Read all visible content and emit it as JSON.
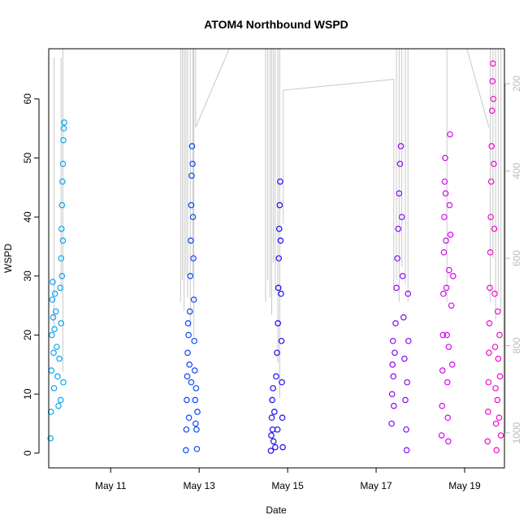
{
  "chart_data": {
    "type": "scatter",
    "title": "ATOM4 Northbound WSPD",
    "xlabel": "Date",
    "ylabel": "WSPD",
    "x_ticks": [
      {
        "label": "May 11",
        "day": 11
      },
      {
        "label": "May 13",
        "day": 13
      },
      {
        "label": "May 15",
        "day": 15
      },
      {
        "label": "May 17",
        "day": 17
      },
      {
        "label": "May 19",
        "day": 19
      }
    ],
    "xlim": [
      9.6,
      19.9
    ],
    "ylim": [
      -2.5,
      68.5
    ],
    "y_ticks": [
      0,
      10,
      20,
      30,
      40,
      50,
      60
    ],
    "y_right_ticks": [
      200,
      400,
      600,
      800,
      1000
    ],
    "y_right_lim": [
      120,
      1080
    ],
    "y_right_reversed": true,
    "point_shape": "open-circle",
    "legend": "none",
    "grid": false,
    "series": [
      {
        "color": "#0aa6ee",
        "values": [
          [
            9.64,
            2.5
          ],
          [
            9.65,
            7
          ],
          [
            9.66,
            14
          ],
          [
            9.67,
            20
          ],
          [
            9.68,
            26
          ],
          [
            9.69,
            29
          ],
          [
            9.7,
            23
          ],
          [
            9.71,
            17
          ],
          [
            9.72,
            11
          ],
          [
            9.73,
            21
          ],
          [
            9.74,
            27
          ],
          [
            9.76,
            24
          ],
          [
            9.78,
            18
          ],
          [
            9.8,
            13
          ],
          [
            9.82,
            8
          ],
          [
            9.84,
            16
          ],
          [
            9.86,
            28
          ],
          [
            9.88,
            33
          ],
          [
            9.89,
            38
          ],
          [
            9.9,
            42
          ],
          [
            9.91,
            46
          ],
          [
            9.92,
            49
          ],
          [
            9.93,
            53
          ],
          [
            9.94,
            55
          ],
          [
            9.95,
            56
          ],
          [
            9.92,
            36
          ],
          [
            9.9,
            30
          ],
          [
            9.88,
            22
          ],
          [
            9.87,
            9
          ],
          [
            9.93,
            12
          ]
        ]
      },
      {
        "color": "#0a48f5",
        "values": [
          [
            12.7,
            0.5
          ],
          [
            12.71,
            4
          ],
          [
            12.72,
            9
          ],
          [
            12.73,
            13
          ],
          [
            12.74,
            17
          ],
          [
            12.75,
            22
          ],
          [
            12.76,
            20
          ],
          [
            12.78,
            15
          ],
          [
            12.79,
            24
          ],
          [
            12.8,
            30
          ],
          [
            12.81,
            36
          ],
          [
            12.82,
            42
          ],
          [
            12.83,
            47
          ],
          [
            12.84,
            52
          ],
          [
            12.85,
            49
          ],
          [
            12.86,
            40
          ],
          [
            12.87,
            33
          ],
          [
            12.88,
            26
          ],
          [
            12.89,
            19
          ],
          [
            12.9,
            14
          ],
          [
            12.91,
            9
          ],
          [
            12.92,
            5
          ],
          [
            12.93,
            11
          ],
          [
            12.94,
            4
          ],
          [
            12.95,
            0.7
          ],
          [
            12.96,
            7
          ],
          [
            12.82,
            12
          ],
          [
            12.77,
            6
          ]
        ]
      },
      {
        "color": "#1d0df0",
        "values": [
          [
            14.62,
            0.4
          ],
          [
            14.63,
            3
          ],
          [
            14.64,
            6
          ],
          [
            14.65,
            9
          ],
          [
            14.66,
            4
          ],
          [
            14.67,
            11
          ],
          [
            14.68,
            2
          ],
          [
            14.7,
            7
          ],
          [
            14.72,
            1
          ],
          [
            14.74,
            13
          ],
          [
            14.76,
            17
          ],
          [
            14.78,
            22
          ],
          [
            14.79,
            28
          ],
          [
            14.8,
            33
          ],
          [
            14.81,
            38
          ],
          [
            14.82,
            42
          ],
          [
            14.83,
            46
          ],
          [
            14.84,
            36
          ],
          [
            14.85,
            27
          ],
          [
            14.86,
            19
          ],
          [
            14.87,
            12
          ],
          [
            14.88,
            6
          ],
          [
            14.89,
            1
          ],
          [
            14.77,
            4
          ]
        ]
      },
      {
        "color": "#8a0af0",
        "values": [
          [
            17.35,
            5
          ],
          [
            17.36,
            10
          ],
          [
            17.37,
            15
          ],
          [
            17.38,
            19
          ],
          [
            17.39,
            13
          ],
          [
            17.4,
            8
          ],
          [
            17.42,
            17
          ],
          [
            17.44,
            22
          ],
          [
            17.46,
            28
          ],
          [
            17.48,
            33
          ],
          [
            17.5,
            38
          ],
          [
            17.52,
            44
          ],
          [
            17.54,
            49
          ],
          [
            17.56,
            52
          ],
          [
            17.58,
            40
          ],
          [
            17.6,
            30
          ],
          [
            17.62,
            23
          ],
          [
            17.64,
            16
          ],
          [
            17.66,
            9
          ],
          [
            17.68,
            4
          ],
          [
            17.69,
            0.5
          ],
          [
            17.7,
            12
          ],
          [
            17.72,
            27
          ],
          [
            17.73,
            19
          ]
        ]
      },
      {
        "color": "#d40af0",
        "values": [
          [
            18.48,
            3
          ],
          [
            18.49,
            8
          ],
          [
            18.5,
            14
          ],
          [
            18.51,
            20
          ],
          [
            18.52,
            27
          ],
          [
            18.53,
            34
          ],
          [
            18.54,
            40
          ],
          [
            18.55,
            46
          ],
          [
            18.56,
            50
          ],
          [
            18.57,
            44
          ],
          [
            18.58,
            36
          ],
          [
            18.59,
            28
          ],
          [
            18.6,
            20
          ],
          [
            18.61,
            12
          ],
          [
            18.62,
            6
          ],
          [
            18.63,
            2
          ],
          [
            18.64,
            18
          ],
          [
            18.65,
            31
          ],
          [
            18.66,
            42
          ],
          [
            18.67,
            54
          ],
          [
            18.68,
            37
          ],
          [
            18.7,
            25
          ],
          [
            18.72,
            15
          ],
          [
            18.74,
            30
          ]
        ]
      },
      {
        "color": "#f20ad0",
        "values": [
          [
            19.52,
            2
          ],
          [
            19.53,
            7
          ],
          [
            19.54,
            12
          ],
          [
            19.55,
            17
          ],
          [
            19.56,
            22
          ],
          [
            19.57,
            28
          ],
          [
            19.58,
            34
          ],
          [
            19.59,
            40
          ],
          [
            19.6,
            46
          ],
          [
            19.61,
            52
          ],
          [
            19.62,
            58
          ],
          [
            19.63,
            63
          ],
          [
            19.64,
            66
          ],
          [
            19.65,
            60
          ],
          [
            19.66,
            49
          ],
          [
            19.67,
            38
          ],
          [
            19.68,
            27
          ],
          [
            19.69,
            18
          ],
          [
            19.7,
            11
          ],
          [
            19.71,
            5
          ],
          [
            19.72,
            0.5
          ],
          [
            19.74,
            9
          ],
          [
            19.76,
            16
          ],
          [
            19.78,
            6
          ],
          [
            19.8,
            13
          ],
          [
            19.82,
            3
          ],
          [
            19.79,
            20
          ],
          [
            19.75,
            24
          ]
        ]
      }
    ],
    "overlay": {
      "color": "#c8c8c8",
      "axis": "right",
      "segments": [
        [
          [
            9.6,
            615
          ],
          [
            9.6,
            900
          ]
        ],
        [
          [
            9.72,
            140
          ],
          [
            9.72,
            760
          ]
        ],
        [
          [
            9.88,
            140
          ],
          [
            9.88,
            680
          ]
        ],
        [
          [
            9.92,
            120
          ],
          [
            9.92,
            860
          ]
        ],
        [
          [
            12.58,
            120
          ],
          [
            12.58,
            700
          ]
        ],
        [
          [
            12.62,
            120
          ],
          [
            12.62,
            650
          ]
        ],
        [
          [
            12.66,
            120
          ],
          [
            12.66,
            720
          ]
        ],
        [
          [
            12.7,
            120
          ],
          [
            12.7,
            640
          ]
        ],
        [
          [
            12.74,
            120
          ],
          [
            12.74,
            690
          ]
        ],
        [
          [
            12.8,
            120
          ],
          [
            12.8,
            760
          ]
        ],
        [
          [
            12.86,
            120
          ],
          [
            12.86,
            640
          ]
        ],
        [
          [
            12.88,
            120
          ],
          [
            12.88,
            780
          ]
        ],
        [
          [
            12.92,
            120
          ],
          [
            12.92,
            300
          ]
        ],
        [
          [
            12.92,
            300
          ],
          [
            13.68,
            120
          ]
        ],
        [
          [
            14.5,
            120
          ],
          [
            14.5,
            700
          ]
        ],
        [
          [
            14.55,
            120
          ],
          [
            14.55,
            650
          ]
        ],
        [
          [
            14.6,
            120
          ],
          [
            14.6,
            690
          ]
        ],
        [
          [
            14.64,
            120
          ],
          [
            14.64,
            730
          ]
        ],
        [
          [
            14.68,
            120
          ],
          [
            14.68,
            610
          ]
        ],
        [
          [
            14.72,
            120
          ],
          [
            14.72,
            680
          ]
        ],
        [
          [
            14.78,
            120
          ],
          [
            14.78,
            840
          ]
        ],
        [
          [
            14.82,
            120
          ],
          [
            14.82,
            920
          ]
        ],
        [
          [
            14.9,
            215
          ],
          [
            14.9,
            520
          ]
        ],
        [
          [
            14.9,
            215
          ],
          [
            17.4,
            190
          ]
        ],
        [
          [
            17.4,
            190
          ],
          [
            17.4,
            680
          ]
        ],
        [
          [
            17.46,
            120
          ],
          [
            17.46,
            650
          ]
        ],
        [
          [
            17.52,
            120
          ],
          [
            17.52,
            700
          ]
        ],
        [
          [
            17.58,
            120
          ],
          [
            17.58,
            620
          ]
        ],
        [
          [
            17.66,
            120
          ],
          [
            17.66,
            660
          ]
        ],
        [
          [
            17.72,
            120
          ],
          [
            17.72,
            700
          ]
        ],
        [
          [
            18.6,
            120
          ],
          [
            18.6,
            700
          ]
        ],
        [
          [
            19.05,
            120
          ],
          [
            19.55,
            300
          ]
        ],
        [
          [
            19.58,
            120
          ],
          [
            19.58,
            700
          ]
        ],
        [
          [
            19.64,
            120
          ],
          [
            19.64,
            600
          ]
        ],
        [
          [
            19.7,
            120
          ],
          [
            19.7,
            740
          ]
        ],
        [
          [
            19.76,
            120
          ],
          [
            19.76,
            680
          ]
        ],
        [
          [
            19.82,
            120
          ],
          [
            19.82,
            720
          ]
        ]
      ]
    }
  }
}
